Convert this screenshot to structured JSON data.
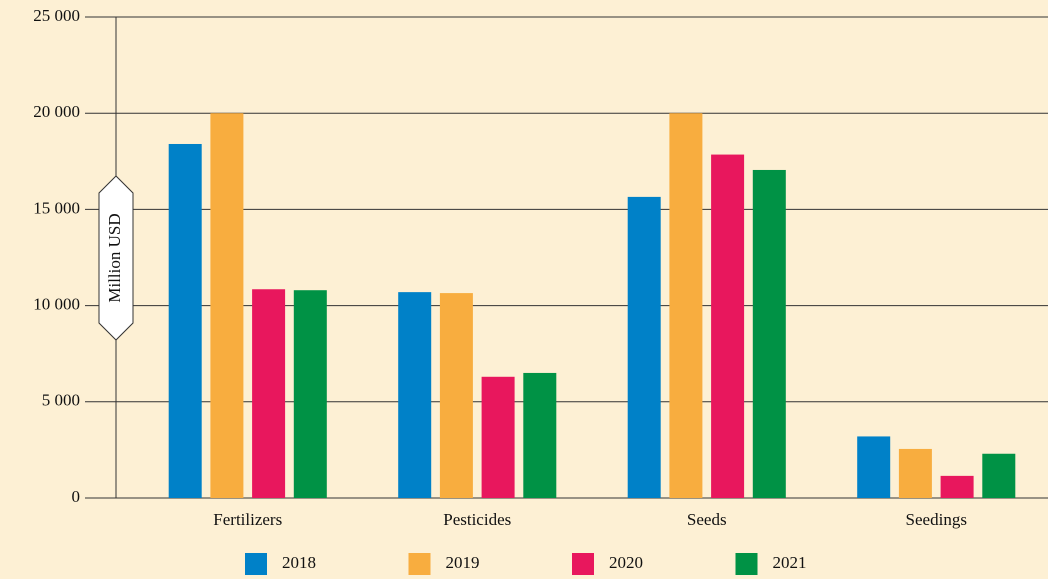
{
  "chart_data": {
    "type": "bar",
    "y_label": "Million USD",
    "categories": [
      "Fertilizers",
      "Pesticides",
      "Seeds",
      "Seedings"
    ],
    "series": [
      {
        "name": "2018",
        "color": "#0081c8",
        "values": [
          18400,
          10700,
          15650,
          3200
        ]
      },
      {
        "name": "2019",
        "color": "#f8ad3f",
        "values": [
          20000,
          10650,
          20000,
          2550
        ]
      },
      {
        "name": "2020",
        "color": "#e8175d",
        "values": [
          10850,
          6300,
          17850,
          1150
        ]
      },
      {
        "name": "2021",
        "color": "#009245",
        "values": [
          10800,
          6500,
          17050,
          2300
        ]
      }
    ],
    "ylim": [
      0,
      25000
    ],
    "yticks": [
      0,
      {
        "value": 5000,
        "label": "5 000"
      },
      {
        "value": 10000,
        "label": "10 000"
      },
      {
        "value": 15000,
        "label": "15 000"
      },
      {
        "value": 20000,
        "label": "20 000"
      },
      {
        "value": 25000,
        "label": "25 000"
      }
    ],
    "grid": true,
    "legend": "bottom"
  }
}
